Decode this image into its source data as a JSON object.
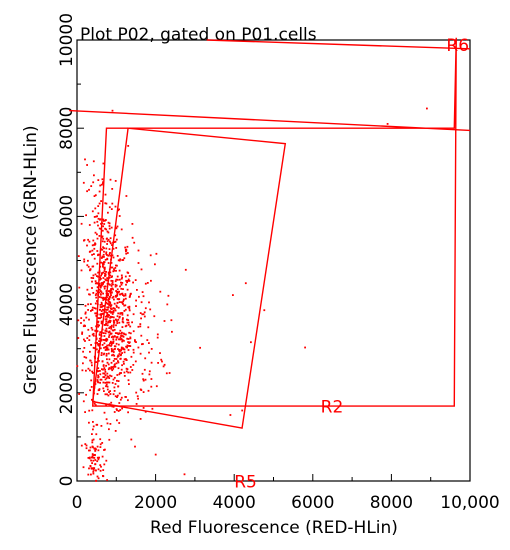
{
  "chart_data": {
    "type": "scatter",
    "title": "Plot P02, gated on P01.cells",
    "xlabel": "Red Fluorescence (RED-HLin)",
    "ylabel": "Green Fluorescence (GRN-HLin)",
    "xlim": [
      0,
      10000
    ],
    "ylim": [
      0,
      10000
    ],
    "x_ticks": [
      "0",
      "2000",
      "4000",
      "6000",
      "8000",
      "10,000"
    ],
    "y_ticks": [
      "0",
      "2000",
      "4000",
      "6000",
      "8000",
      "10000"
    ],
    "grid": false,
    "point_color": "#ff0000",
    "gate_color": "#ff0000",
    "gates": [
      {
        "name": "R6",
        "type": "region",
        "points": [
          [
            -200,
            8400
          ],
          [
            10000,
            7950
          ]
        ],
        "label_at": [
          9400,
          9750
        ]
      },
      {
        "name": "R2",
        "type": "polygon",
        "points": [
          [
            750,
            8000
          ],
          [
            9600,
            8000
          ],
          [
            9650,
            10050
          ],
          [
            9600,
            1700
          ],
          [
            400,
            1700
          ]
        ],
        "label_at": [
          6200,
          1550
        ]
      },
      {
        "name": "R5",
        "type": "polygon",
        "points": [
          [
            1300,
            8000
          ],
          [
            5300,
            7650
          ],
          [
            4200,
            1200
          ],
          [
            400,
            1800
          ]
        ],
        "label_at": [
          4000,
          -150
        ]
      }
    ],
    "series": [
      {
        "clusters": [
          {
            "cx": 800,
            "cy": 3600,
            "sx": 300,
            "sy": 1100,
            "n": 700
          },
          {
            "cx": 1100,
            "cy": 3300,
            "sx": 550,
            "sy": 900,
            "n": 250
          },
          {
            "cx": 600,
            "cy": 5500,
            "sx": 250,
            "sy": 800,
            "n": 120
          },
          {
            "cx": 450,
            "cy": 400,
            "sx": 120,
            "sy": 350,
            "n": 90
          },
          {
            "cx": 2500,
            "cy": 3500,
            "sx": 1200,
            "sy": 1500,
            "n": 12
          }
        ],
        "outliers": [
          [
            900,
            8400
          ],
          [
            1300,
            7600
          ],
          [
            2200,
            2600
          ],
          [
            3900,
            1500
          ],
          [
            4200,
            1600
          ],
          [
            2000,
            600
          ],
          [
            7900,
            8100
          ],
          [
            8900,
            8450
          ]
        ]
      }
    ]
  }
}
